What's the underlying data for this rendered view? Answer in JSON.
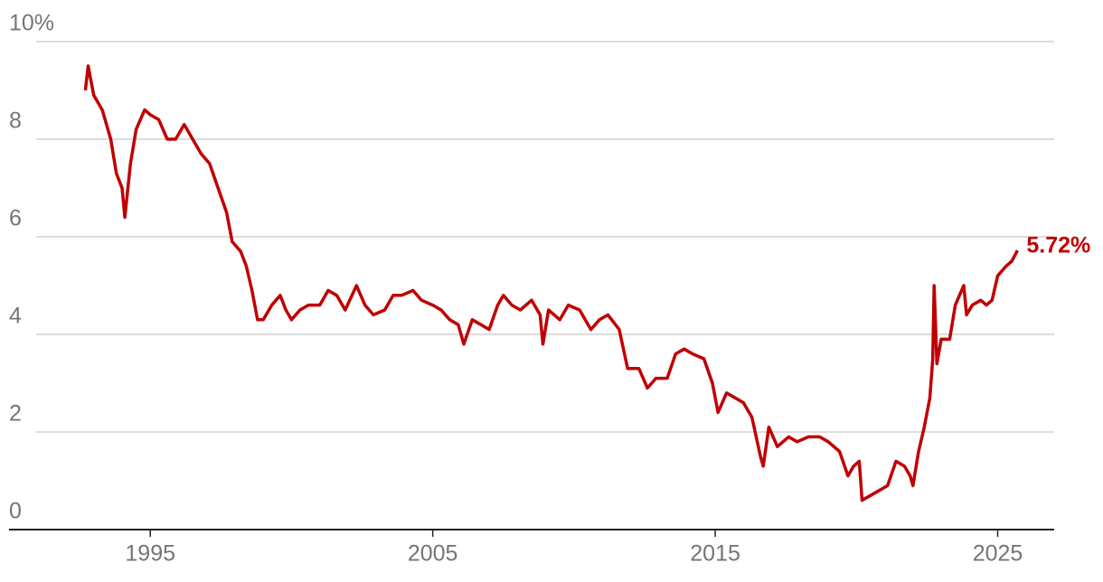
{
  "chart_data": {
    "type": "line",
    "x": [
      1992.7,
      1992.8,
      1993.0,
      1993.3,
      1993.6,
      1993.8,
      1994.0,
      1994.1,
      1994.3,
      1994.5,
      1994.8,
      1995.0,
      1995.3,
      1995.6,
      1995.9,
      1996.2,
      1996.5,
      1996.8,
      1997.1,
      1997.4,
      1997.7,
      1997.9,
      1998.2,
      1998.4,
      1998.6,
      1998.8,
      1999.0,
      1999.3,
      1999.6,
      1999.8,
      2000.0,
      2000.3,
      2000.6,
      2001.0,
      2001.3,
      2001.6,
      2001.9,
      2002.3,
      2002.6,
      2002.9,
      2003.3,
      2003.6,
      2003.9,
      2004.3,
      2004.6,
      2005.0,
      2005.3,
      2005.6,
      2005.9,
      2006.1,
      2006.4,
      2006.7,
      2007.0,
      2007.3,
      2007.5,
      2007.8,
      2008.1,
      2008.5,
      2008.8,
      2008.9,
      2009.1,
      2009.5,
      2009.8,
      2010.2,
      2010.6,
      2010.9,
      2011.2,
      2011.6,
      2011.9,
      2012.3,
      2012.6,
      2012.9,
      2013.3,
      2013.6,
      2013.9,
      2014.2,
      2014.6,
      2014.9,
      2015.1,
      2015.4,
      2015.7,
      2016.0,
      2016.3,
      2016.6,
      2016.7,
      2016.9,
      2017.2,
      2017.6,
      2017.9,
      2018.3,
      2018.7,
      2019.0,
      2019.4,
      2019.7,
      2019.9,
      2020.1,
      2020.2,
      2020.5,
      2020.8,
      2021.1,
      2021.4,
      2021.7,
      2021.9,
      2022.0,
      2022.2,
      2022.4,
      2022.6,
      2022.7,
      2022.75,
      2022.85,
      2023.0,
      2023.3,
      2023.5,
      2023.8,
      2023.9,
      2024.1,
      2024.4,
      2024.6,
      2024.8,
      2025.0,
      2025.3,
      2025.5,
      2025.7
    ],
    "series": [
      {
        "color": "#c00000",
        "values": [
          9.0,
          9.5,
          8.9,
          8.6,
          8.0,
          7.3,
          7.0,
          6.4,
          7.5,
          8.2,
          8.6,
          8.5,
          8.4,
          8.0,
          8.0,
          8.3,
          8.0,
          7.7,
          7.5,
          7.0,
          6.5,
          5.9,
          5.7,
          5.4,
          4.9,
          4.3,
          4.3,
          4.6,
          4.8,
          4.5,
          4.3,
          4.5,
          4.6,
          4.6,
          4.9,
          4.8,
          4.5,
          5.0,
          4.6,
          4.4,
          4.5,
          4.8,
          4.8,
          4.9,
          4.7,
          4.6,
          4.5,
          4.3,
          4.2,
          3.8,
          4.3,
          4.2,
          4.1,
          4.6,
          4.8,
          4.6,
          4.5,
          4.7,
          4.4,
          3.8,
          4.5,
          4.3,
          4.6,
          4.5,
          4.1,
          4.3,
          4.4,
          4.1,
          3.3,
          3.3,
          2.9,
          3.1,
          3.1,
          3.6,
          3.7,
          3.6,
          3.5,
          3.0,
          2.4,
          2.8,
          2.7,
          2.6,
          2.3,
          1.5,
          1.3,
          2.1,
          1.7,
          1.9,
          1.8,
          1.9,
          1.9,
          1.8,
          1.6,
          1.1,
          1.3,
          1.4,
          0.6,
          0.7,
          0.8,
          0.9,
          1.4,
          1.3,
          1.1,
          0.9,
          1.6,
          2.1,
          2.7,
          3.5,
          5.0,
          3.4,
          3.9,
          3.9,
          4.6,
          5.0,
          4.4,
          4.6,
          4.7,
          4.6,
          4.7,
          5.2,
          5.4,
          5.5,
          5.72
        ],
        "value_labels": [
          null,
          null,
          null,
          null,
          null,
          null,
          null,
          null,
          null,
          null,
          null,
          null,
          null,
          null,
          null,
          null,
          null,
          null,
          null,
          null,
          null,
          null,
          null,
          null,
          null,
          null,
          null,
          null,
          null,
          null,
          null,
          null,
          null,
          null,
          null,
          null,
          null,
          null,
          null,
          null,
          null,
          null,
          null,
          null,
          null,
          null,
          null,
          null,
          null,
          null,
          null,
          null,
          null,
          null,
          null,
          null,
          null,
          null,
          null,
          null,
          null,
          null,
          null,
          null,
          null,
          null,
          null,
          null,
          null,
          null,
          null,
          null,
          null,
          null,
          null,
          null,
          null,
          null,
          null,
          null,
          null,
          null,
          null,
          null,
          null,
          null,
          null,
          null,
          null,
          null,
          null,
          null,
          null,
          null,
          null,
          null,
          null,
          null,
          null,
          null,
          null,
          null,
          null,
          null,
          null,
          null,
          null,
          null,
          null,
          null,
          null,
          null,
          null,
          null,
          null,
          null,
          null,
          null,
          null,
          null,
          null,
          null,
          "5.72%"
        ]
      }
    ],
    "xlim": [
      1990,
      2027
    ],
    "xticks": [
      1995,
      2005,
      2015,
      2025
    ],
    "ylim": [
      0,
      10
    ],
    "yticks": [
      0,
      2,
      4,
      6,
      8,
      {
        "value": 10,
        "label": "10%"
      }
    ],
    "grid": true
  }
}
